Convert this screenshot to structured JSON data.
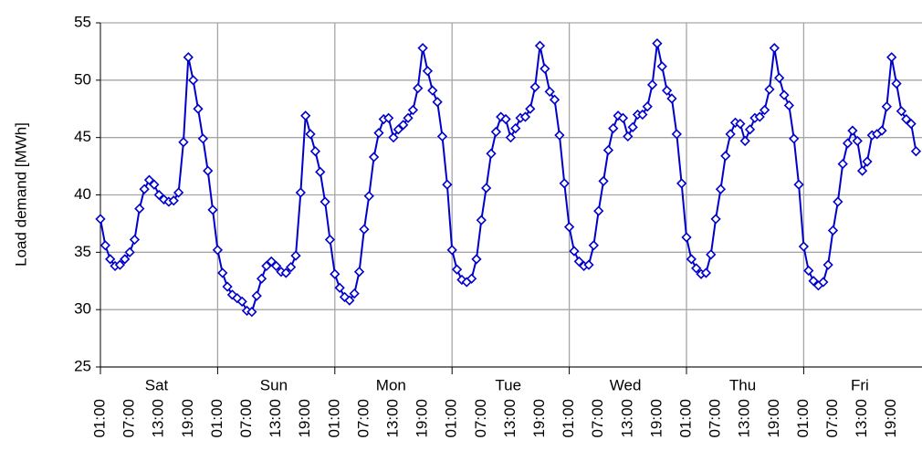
{
  "chart_data": {
    "type": "line",
    "y_label": "Load demand [MWh]",
    "categories": [
      "01:00",
      null,
      null,
      null,
      null,
      null,
      "07:00",
      null,
      null,
      null,
      null,
      null,
      "13:00",
      null,
      null,
      null,
      null,
      null,
      "19:00",
      null,
      null,
      null,
      null,
      null,
      "01:00",
      null,
      null,
      null,
      null,
      null,
      "07:00",
      null,
      null,
      null,
      null,
      null,
      "13:00",
      null,
      null,
      null,
      null,
      null,
      "19:00",
      null,
      null,
      null,
      null,
      null,
      "01:00",
      null,
      null,
      null,
      null,
      null,
      "07:00",
      null,
      null,
      null,
      null,
      null,
      "13:00",
      null,
      null,
      null,
      null,
      null,
      "19:00",
      null,
      null,
      null,
      null,
      null,
      "01:00",
      null,
      null,
      null,
      null,
      null,
      "07:00",
      null,
      null,
      null,
      null,
      null,
      "13:00",
      null,
      null,
      null,
      null,
      null,
      "19:00",
      null,
      null,
      null,
      null,
      null,
      "01:00",
      null,
      null,
      null,
      null,
      null,
      "07:00",
      null,
      null,
      null,
      null,
      null,
      "13:00",
      null,
      null,
      null,
      null,
      null,
      "19:00",
      null,
      null,
      null,
      null,
      null,
      "01:00",
      null,
      null,
      null,
      null,
      null,
      "07:00",
      null,
      null,
      null,
      null,
      null,
      "13:00",
      null,
      null,
      null,
      null,
      null,
      "19:00",
      null,
      null,
      null,
      null,
      null,
      "01:00",
      null,
      null,
      null,
      null,
      null,
      "07:00",
      null,
      null,
      null,
      null,
      null,
      "13:00",
      null,
      null,
      null,
      null,
      null,
      "19:00",
      null,
      null,
      null,
      null,
      null
    ],
    "groups": [
      "Sat",
      "Sun",
      "Mon",
      "Tue",
      "Wed",
      "Thu",
      "Fri"
    ],
    "values": [
      37.9,
      35.6,
      34.4,
      33.8,
      33.9,
      34.4,
      35.0,
      36.1,
      38.8,
      40.5,
      41.3,
      40.9,
      40.0,
      39.6,
      39.4,
      39.5,
      40.2,
      44.6,
      52.0,
      50.0,
      47.5,
      44.9,
      42.1,
      38.7,
      35.2,
      33.2,
      32.0,
      31.3,
      31.0,
      30.7,
      29.9,
      29.8,
      31.2,
      32.7,
      33.8,
      34.2,
      33.8,
      33.3,
      33.2,
      33.7,
      34.7,
      40.2,
      46.9,
      45.3,
      43.8,
      42.0,
      39.4,
      36.1,
      33.1,
      31.9,
      31.1,
      30.8,
      31.4,
      33.3,
      37.0,
      39.9,
      43.3,
      45.4,
      46.6,
      46.7,
      45.0,
      45.7,
      46.1,
      46.7,
      47.4,
      49.3,
      52.8,
      50.8,
      49.1,
      48.1,
      45.1,
      40.9,
      35.2,
      33.5,
      32.6,
      32.4,
      32.7,
      34.4,
      37.8,
      40.6,
      43.6,
      45.5,
      46.8,
      46.6,
      45.0,
      45.8,
      46.7,
      46.8,
      47.5,
      49.4,
      53.0,
      51.0,
      49.0,
      48.3,
      45.2,
      41.0,
      37.2,
      35.1,
      34.2,
      33.8,
      33.9,
      35.6,
      38.6,
      41.2,
      43.9,
      45.8,
      46.9,
      46.7,
      45.1,
      45.9,
      47.0,
      47.0,
      47.7,
      49.6,
      53.2,
      51.2,
      49.1,
      48.4,
      45.3,
      41.0,
      36.3,
      34.4,
      33.6,
      33.1,
      33.2,
      34.8,
      37.9,
      40.5,
      43.4,
      45.3,
      46.3,
      46.2,
      44.7,
      45.7,
      46.7,
      46.8,
      47.4,
      49.2,
      52.8,
      50.2,
      48.7,
      47.8,
      44.9,
      40.9,
      35.5,
      33.4,
      32.5,
      32.1,
      32.4,
      33.9,
      36.9,
      39.4,
      42.7,
      44.5,
      45.6,
      44.7,
      42.1,
      42.9,
      45.2,
      45.3,
      45.6,
      47.7,
      52.0,
      49.7,
      47.3,
      46.6,
      46.2,
      43.8
    ],
    "color": "#0000cc",
    "ylim": [
      25,
      55
    ],
    "yticks": [
      25,
      30,
      35,
      40,
      45,
      50,
      55
    ],
    "grid": true
  }
}
